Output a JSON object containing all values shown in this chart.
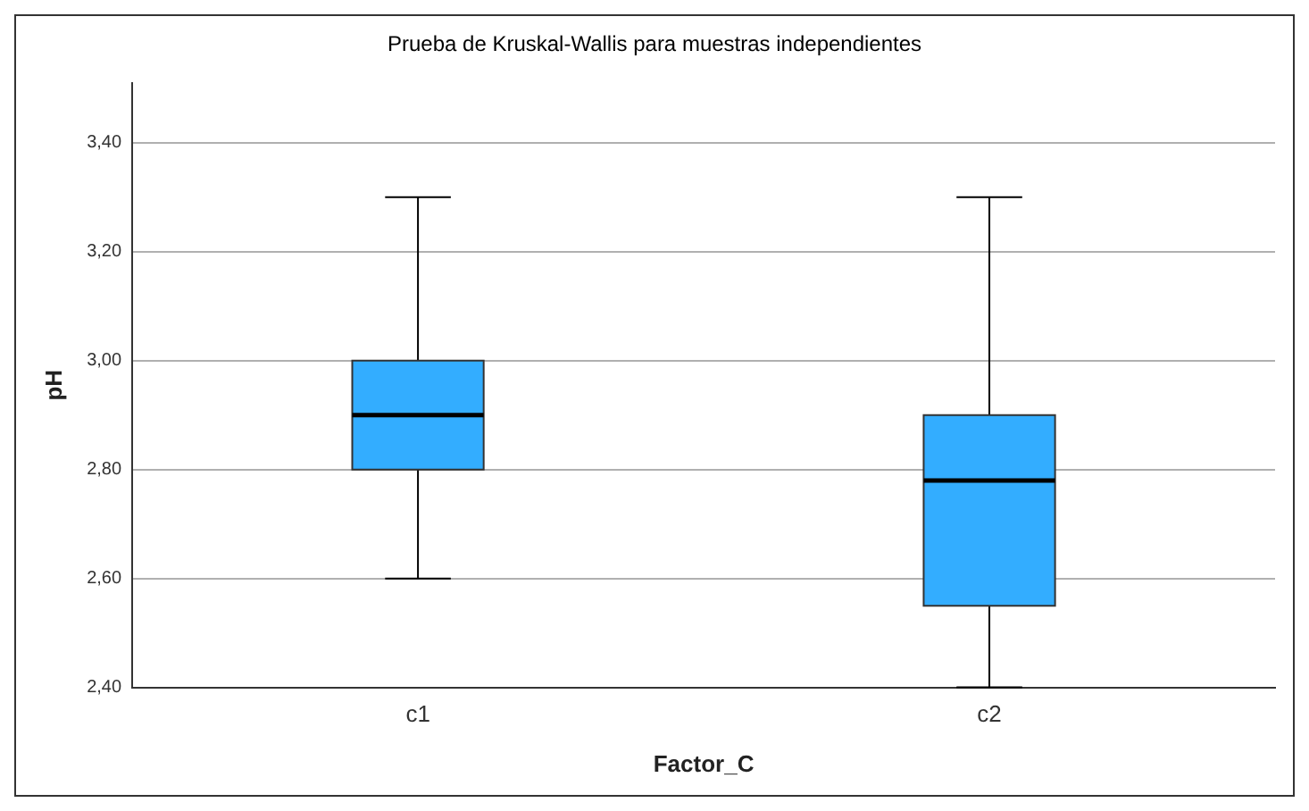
{
  "chart_data": {
    "type": "box",
    "title": "Prueba de Kruskal-Wallis para muestras independientes",
    "xlabel": "Factor_C",
    "ylabel": "pH",
    "categories": [
      "c1",
      "c2"
    ],
    "boxes": [
      {
        "low": 2.6,
        "q1": 2.8,
        "median": 2.9,
        "q3": 3.0,
        "high": 3.3
      },
      {
        "low": 2.4,
        "q1": 2.55,
        "median": 2.78,
        "q3": 2.9,
        "high": 3.3
      }
    ],
    "color": "#33adff",
    "ylim": [
      2.4,
      3.51
    ],
    "yticks": [
      {
        "value": 2.4,
        "label": "2,40"
      },
      {
        "value": 2.6,
        "label": "2,60"
      },
      {
        "value": 2.8,
        "label": "2,80"
      },
      {
        "value": 3.0,
        "label": "3,00"
      },
      {
        "value": 3.2,
        "label": "3,20"
      },
      {
        "value": 3.4,
        "label": "3,40"
      }
    ],
    "grid": "y"
  }
}
